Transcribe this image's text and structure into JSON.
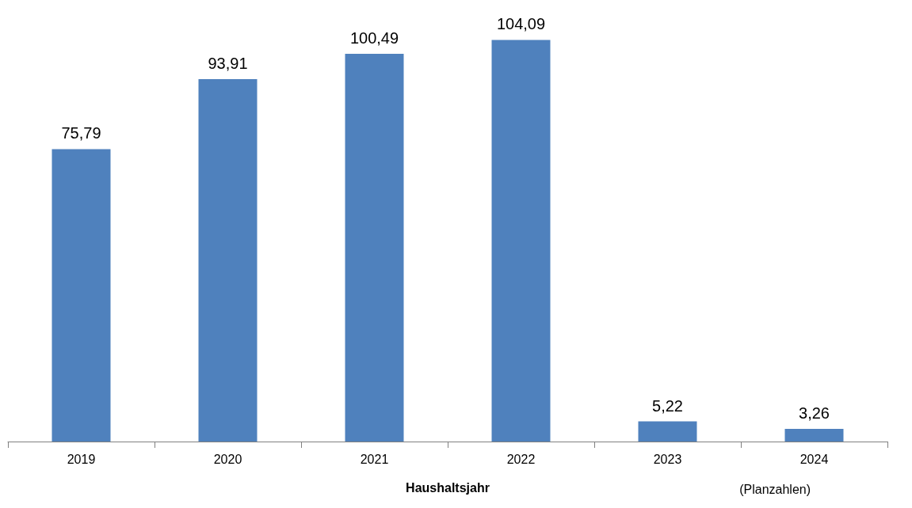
{
  "chart_data": {
    "type": "bar",
    "xlabel": "Haushaltsjahr",
    "categories": [
      "2019",
      "2020",
      "2021",
      "2022",
      "2023",
      "2024"
    ],
    "values": [
      75.79,
      93.91,
      100.49,
      104.09,
      5.22,
      3.26
    ],
    "value_labels": [
      "75,79",
      "93,91",
      "100,49",
      "104,09",
      "5,22",
      "3,26"
    ],
    "color": "#4f81bd",
    "annotations": [
      "(Planzahlen)"
    ]
  }
}
